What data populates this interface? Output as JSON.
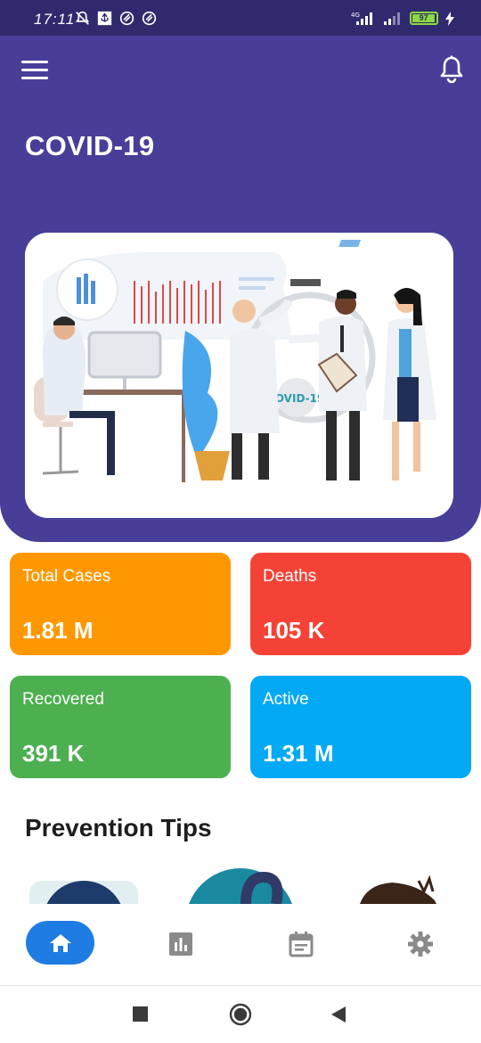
{
  "status_bar": {
    "time": "17:11",
    "battery_level": "97"
  },
  "header": {
    "title": "COVID-19",
    "hero_image": {
      "caption": "COVID-19"
    }
  },
  "stats": [
    {
      "label": "Total Cases",
      "value": "1.81 M",
      "color": "#ff9800"
    },
    {
      "label": "Deaths",
      "value": "105 K",
      "color": "#f44336"
    },
    {
      "label": "Recovered",
      "value": "391 K",
      "color": "#4caf50"
    },
    {
      "label": "Active",
      "value": "1.31 M",
      "color": "#03a9f4"
    }
  ],
  "prevention": {
    "title": "Prevention Tips"
  },
  "bottom_nav": {
    "items": [
      {
        "icon": "home-icon",
        "active": true
      },
      {
        "icon": "bar-chart-icon",
        "active": false
      },
      {
        "icon": "calendar-icon",
        "active": false
      },
      {
        "icon": "settings-icon",
        "active": false
      }
    ],
    "accent": "#1f7ce3"
  },
  "colors": {
    "header": "#473e98",
    "status_bar": "#2f2a6d"
  }
}
